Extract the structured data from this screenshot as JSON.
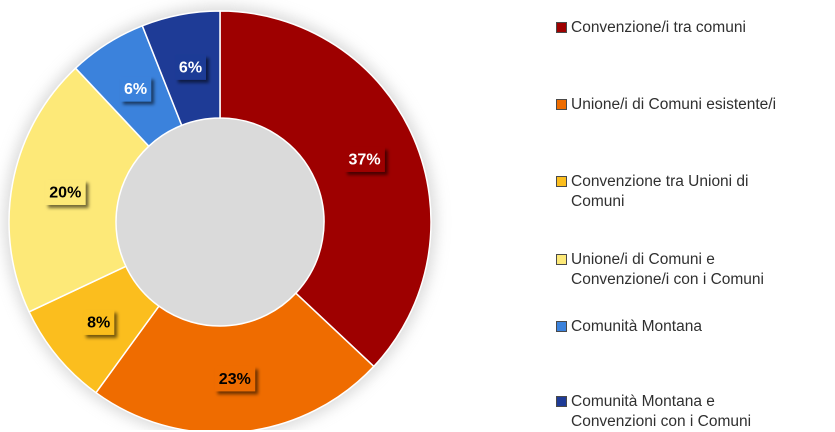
{
  "chart_data": {
    "type": "pie",
    "variant": "donut",
    "title": "",
    "legend_position": "right",
    "series": [
      {
        "categories": [
          "Convenzione/i tra comuni",
          "Unione/i di Comuni esistente/i",
          "Convenzione tra Unioni di\nComuni",
          "Unione/i di Comuni e\nConvenzione/i con i Comuni",
          "Comunità Montana",
          "Comunità Montana e\nConvenzioni con i Comuni"
        ],
        "values": [
          37,
          23,
          8,
          20,
          6,
          6
        ],
        "labels": [
          "37%",
          "23%",
          "8%",
          "20%",
          "6%",
          "6%"
        ],
        "colors": [
          "#9e0000",
          "#ef6c00",
          "#fbbe1e",
          "#fde978",
          "#3b82dc",
          "#1e3b96"
        ],
        "label_text_colors": [
          "#ffffff",
          "#000000",
          "#000000",
          "#000000",
          "#ffffff",
          "#ffffff"
        ]
      }
    ]
  }
}
